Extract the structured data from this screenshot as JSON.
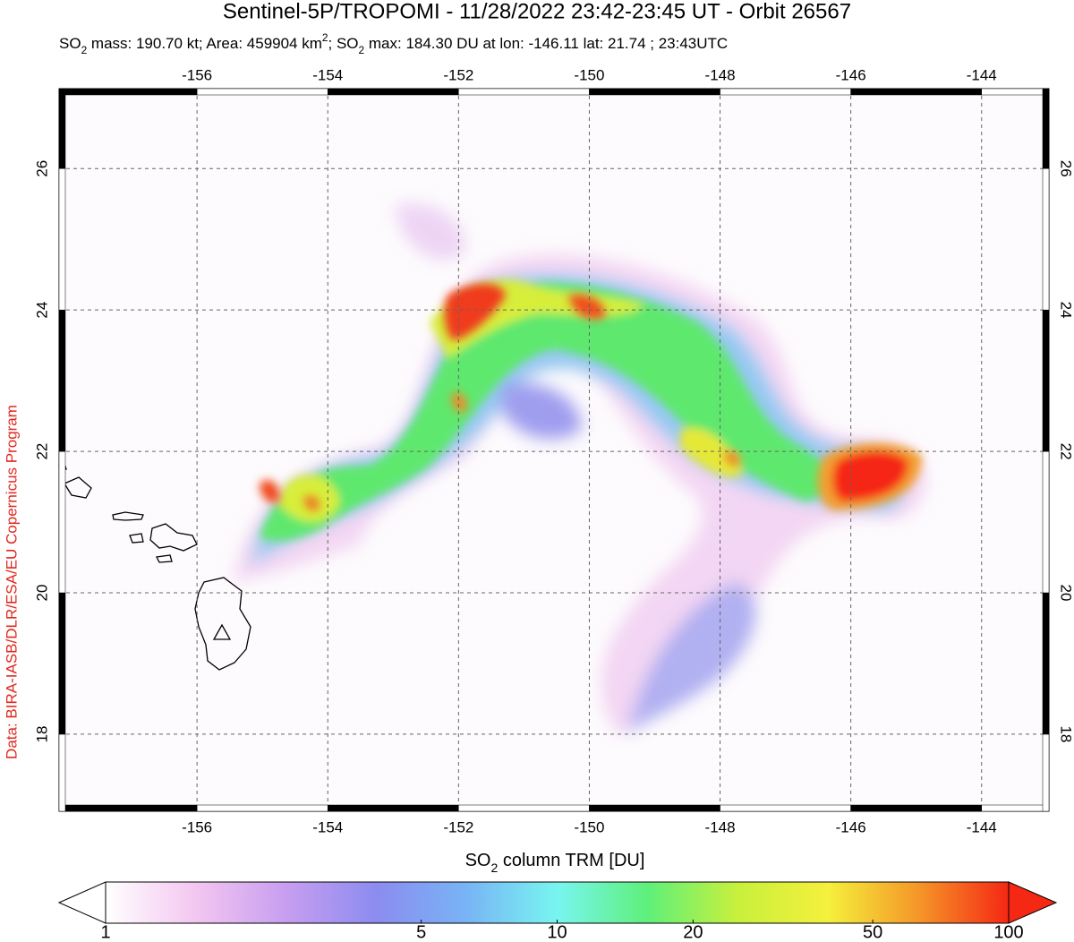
{
  "header": {
    "title": "Sentinel-5P/TROPOMI - 11/28/2022 23:42-23:45 UT - Orbit 26567",
    "subtitle": [
      {
        "text": "SO",
        "style": "normal"
      },
      {
        "text": "2",
        "style": "sub"
      },
      {
        "text": " mass: 190.70 kt; Area: 459904 km",
        "style": "normal"
      },
      {
        "text": "2",
        "style": "sup"
      },
      {
        "text": "; SO",
        "style": "normal"
      },
      {
        "text": "2",
        "style": "sub"
      },
      {
        "text": " max: 184.30 DU at lon: -146.11 lat: 21.74 ; 23:43UTC",
        "style": "normal"
      }
    ]
  },
  "credit": "Data: BIRA-IASB/DLR/ESA/EU Copernicus Program",
  "map": {
    "xlim": [
      -158.11,
      -142.97
    ],
    "ylim": [
      16.91,
      27.13
    ],
    "xticks": [
      -156,
      -154,
      -152,
      -150,
      -148,
      -146,
      -144
    ],
    "yticks": [
      18,
      20,
      22,
      24,
      26
    ],
    "grid": true
  },
  "colorbar": {
    "label": [
      {
        "text": "SO",
        "style": "normal"
      },
      {
        "text": "2",
        "style": "sub"
      },
      {
        "text": " column TRM [DU]",
        "style": "normal"
      }
    ],
    "scale": "log",
    "lim": [
      1,
      100
    ],
    "ticks": [
      1,
      5,
      10,
      20,
      50,
      100
    ],
    "colors": [
      "#ffffff",
      "#f3c6f0",
      "#c79ef0",
      "#8c8cf0",
      "#78b4f5",
      "#78f5f0",
      "#5ef07a",
      "#c8f03c",
      "#f5f03c",
      "#f59628",
      "#f52814"
    ]
  }
}
